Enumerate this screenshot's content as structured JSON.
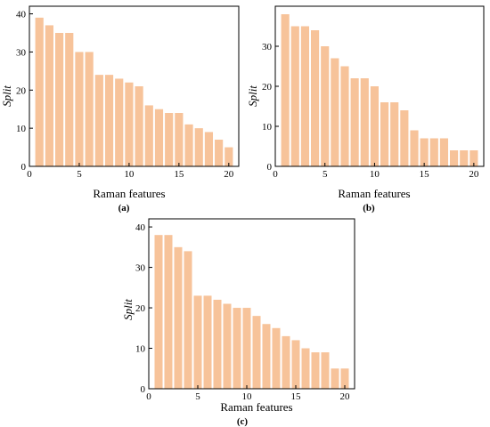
{
  "style": {
    "bar_color": "#F7C39A",
    "frame_color": "#000000"
  },
  "chart_data": [
    {
      "type": "bar",
      "panel_label": "(a)",
      "xlabel": "Raman features",
      "ylabel": "Split",
      "x": [
        1,
        2,
        3,
        4,
        5,
        6,
        7,
        8,
        9,
        10,
        11,
        12,
        13,
        14,
        15,
        16,
        17,
        18,
        19,
        20
      ],
      "values": [
        39,
        37,
        35,
        35,
        30,
        30,
        24,
        24,
        23,
        22,
        21,
        16,
        15,
        14,
        14,
        11,
        10,
        9,
        7,
        5
      ],
      "xlim": [
        0,
        21
      ],
      "ylim": [
        0,
        42
      ],
      "xticks": [
        0,
        5,
        10,
        15,
        20
      ],
      "yticks": [
        0,
        10,
        20,
        30,
        40
      ]
    },
    {
      "type": "bar",
      "panel_label": "(b)",
      "xlabel": "Raman features",
      "ylabel": "Split",
      "x": [
        1,
        2,
        3,
        4,
        5,
        6,
        7,
        8,
        9,
        10,
        11,
        12,
        13,
        14,
        15,
        16,
        17,
        18,
        19,
        20
      ],
      "values": [
        38,
        35,
        35,
        34,
        30,
        27,
        25,
        22,
        22,
        20,
        16,
        16,
        14,
        9,
        7,
        7,
        7,
        4,
        4,
        4
      ],
      "xlim": [
        0,
        21
      ],
      "ylim": [
        0,
        40
      ],
      "xticks": [
        0,
        5,
        10,
        15,
        20
      ],
      "yticks": [
        0,
        10,
        20,
        30
      ]
    },
    {
      "type": "bar",
      "panel_label": "(c)",
      "xlabel": "Raman features",
      "ylabel": "Split",
      "x": [
        1,
        2,
        3,
        4,
        5,
        6,
        7,
        8,
        9,
        10,
        11,
        12,
        13,
        14,
        15,
        16,
        17,
        18,
        19,
        20
      ],
      "values": [
        38,
        38,
        35,
        34,
        23,
        23,
        22,
        21,
        20,
        20,
        18,
        16,
        15,
        13,
        12,
        10,
        9,
        9,
        5,
        5
      ],
      "xlim": [
        0,
        21
      ],
      "ylim": [
        0,
        42
      ],
      "xticks": [
        0,
        5,
        10,
        15,
        20
      ],
      "yticks": [
        0,
        10,
        20,
        30,
        40
      ]
    }
  ]
}
